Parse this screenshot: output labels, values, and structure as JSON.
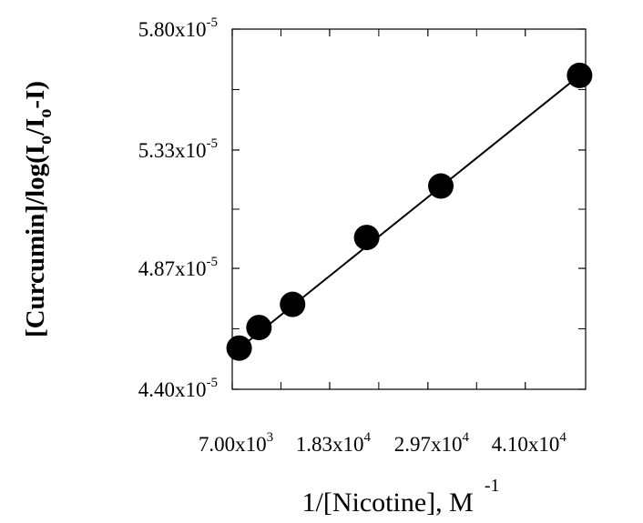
{
  "chart_data": {
    "type": "scatter",
    "title": "",
    "xlabel": {
      "text": "1/[Nicotine], M",
      "superscript": "-1"
    },
    "ylabel": {
      "parts": [
        {
          "text": "[Curcumin]/log(I"
        },
        {
          "sub": "o"
        },
        {
          "text": "/I"
        },
        {
          "sub": "o"
        },
        {
          "text": "-I)"
        }
      ]
    },
    "xlim": [
      7000,
      48000
    ],
    "ylim": [
      4.4e-05,
      5.8e-05
    ],
    "x_ticks": [
      {
        "value": 7000,
        "mantissa": "7.00x10",
        "exp": "3"
      },
      {
        "value": 18300,
        "mantissa": "1.83x10",
        "exp": "4"
      },
      {
        "value": 29700,
        "mantissa": "2.97x10",
        "exp": "4"
      },
      {
        "value": 41000,
        "mantissa": "4.10x10",
        "exp": "4"
      }
    ],
    "y_ticks": [
      {
        "value": 4.4e-05,
        "mantissa": "4.40x10",
        "exp": "-5"
      },
      {
        "value": 4.87e-05,
        "mantissa": "4.87x10",
        "exp": "-5"
      },
      {
        "value": 5.33e-05,
        "mantissa": "5.33x10",
        "exp": "-5"
      },
      {
        "value": 5.8e-05,
        "mantissa": "5.80x10",
        "exp": "-5"
      }
    ],
    "x_minor_ticks": [
      12650,
      24000,
      35350
    ],
    "y_minor_ticks": [
      4.635e-05,
      5.1e-05,
      5.565e-05
    ],
    "series": [
      {
        "points": [
          {
            "x": 7800,
            "y": 4.56e-05
          },
          {
            "x": 10100,
            "y": 4.64e-05
          },
          {
            "x": 14000,
            "y": 4.73e-05
          },
          {
            "x": 22600,
            "y": 4.99e-05
          },
          {
            "x": 31200,
            "y": 5.19e-05
          },
          {
            "x": 47300,
            "y": 5.62e-05
          }
        ],
        "fit_line": {
          "x_start": 7300,
          "y_start": 4.545e-05,
          "x_end": 47300,
          "y_end": 5.62e-05
        }
      }
    ],
    "marker_color": "#000000",
    "line_color": "#000000",
    "grid": false
  }
}
